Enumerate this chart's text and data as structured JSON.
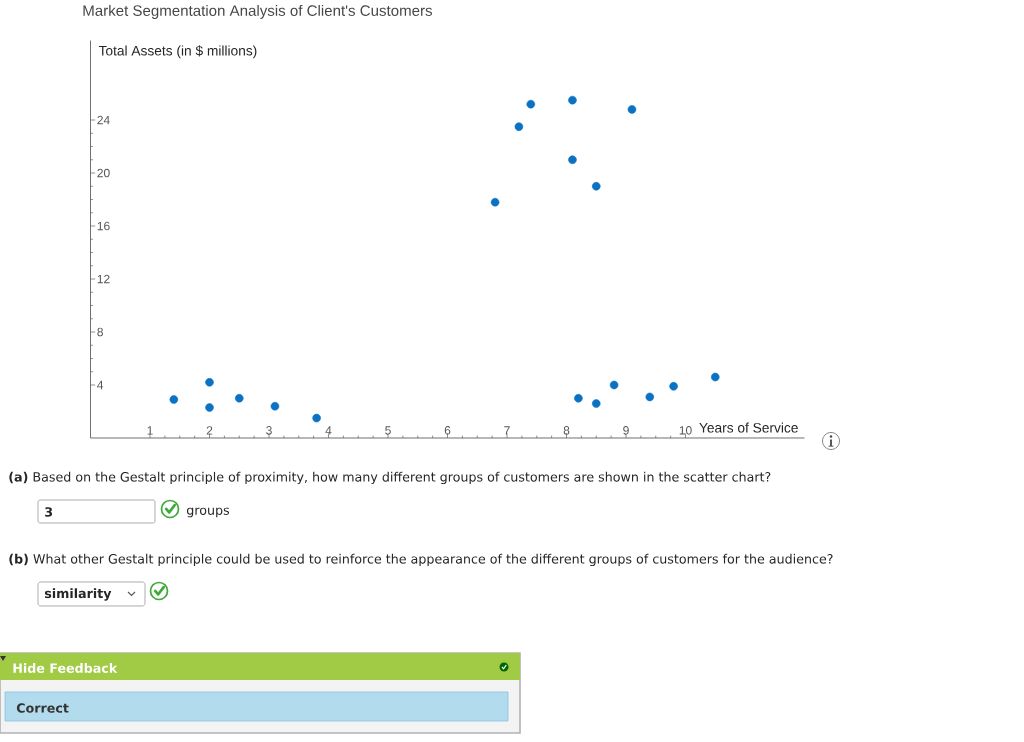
{
  "chart_data": {
    "type": "scatter",
    "title": "Market Segmentation Analysis of Client's Customers",
    "xlabel": "Years of Service",
    "ylabel": "Total Assets (in $ millions)",
    "x": [
      1.4,
      2.0,
      2.0,
      2.5,
      3.1,
      3.8,
      6.8,
      7.2,
      7.4,
      8.1,
      9.1,
      8.1,
      8.5,
      8.2,
      8.5,
      8.8,
      9.4,
      9.8,
      10.5
    ],
    "values": [
      2.9,
      4.2,
      2.3,
      3.0,
      2.4,
      1.5,
      17.8,
      23.5,
      25.2,
      25.5,
      24.8,
      21.0,
      19.0,
      3.0,
      2.6,
      4.0,
      3.1,
      3.9,
      4.6
    ],
    "color": "#0b71c2",
    "marker": "circle",
    "xlim": [
      0,
      12
    ],
    "ylim": [
      0,
      30
    ],
    "xticks": [
      1,
      2,
      3,
      4,
      5,
      6,
      7,
      8,
      9,
      10
    ],
    "yticks": [
      4,
      8,
      12,
      16,
      20,
      24
    ],
    "annotations": [
      "**(a)** Based on the Gestalt principle of proximity, how many different groups of customers are shown in the scatter chart?",
      "3",
      "groups",
      "**(b)** What other Gestalt principle could be used to reinforce the appearance of the different groups of customers for the audience?",
      "similarity",
      "Hide Feedback",
      "Correct"
    ]
  }
}
